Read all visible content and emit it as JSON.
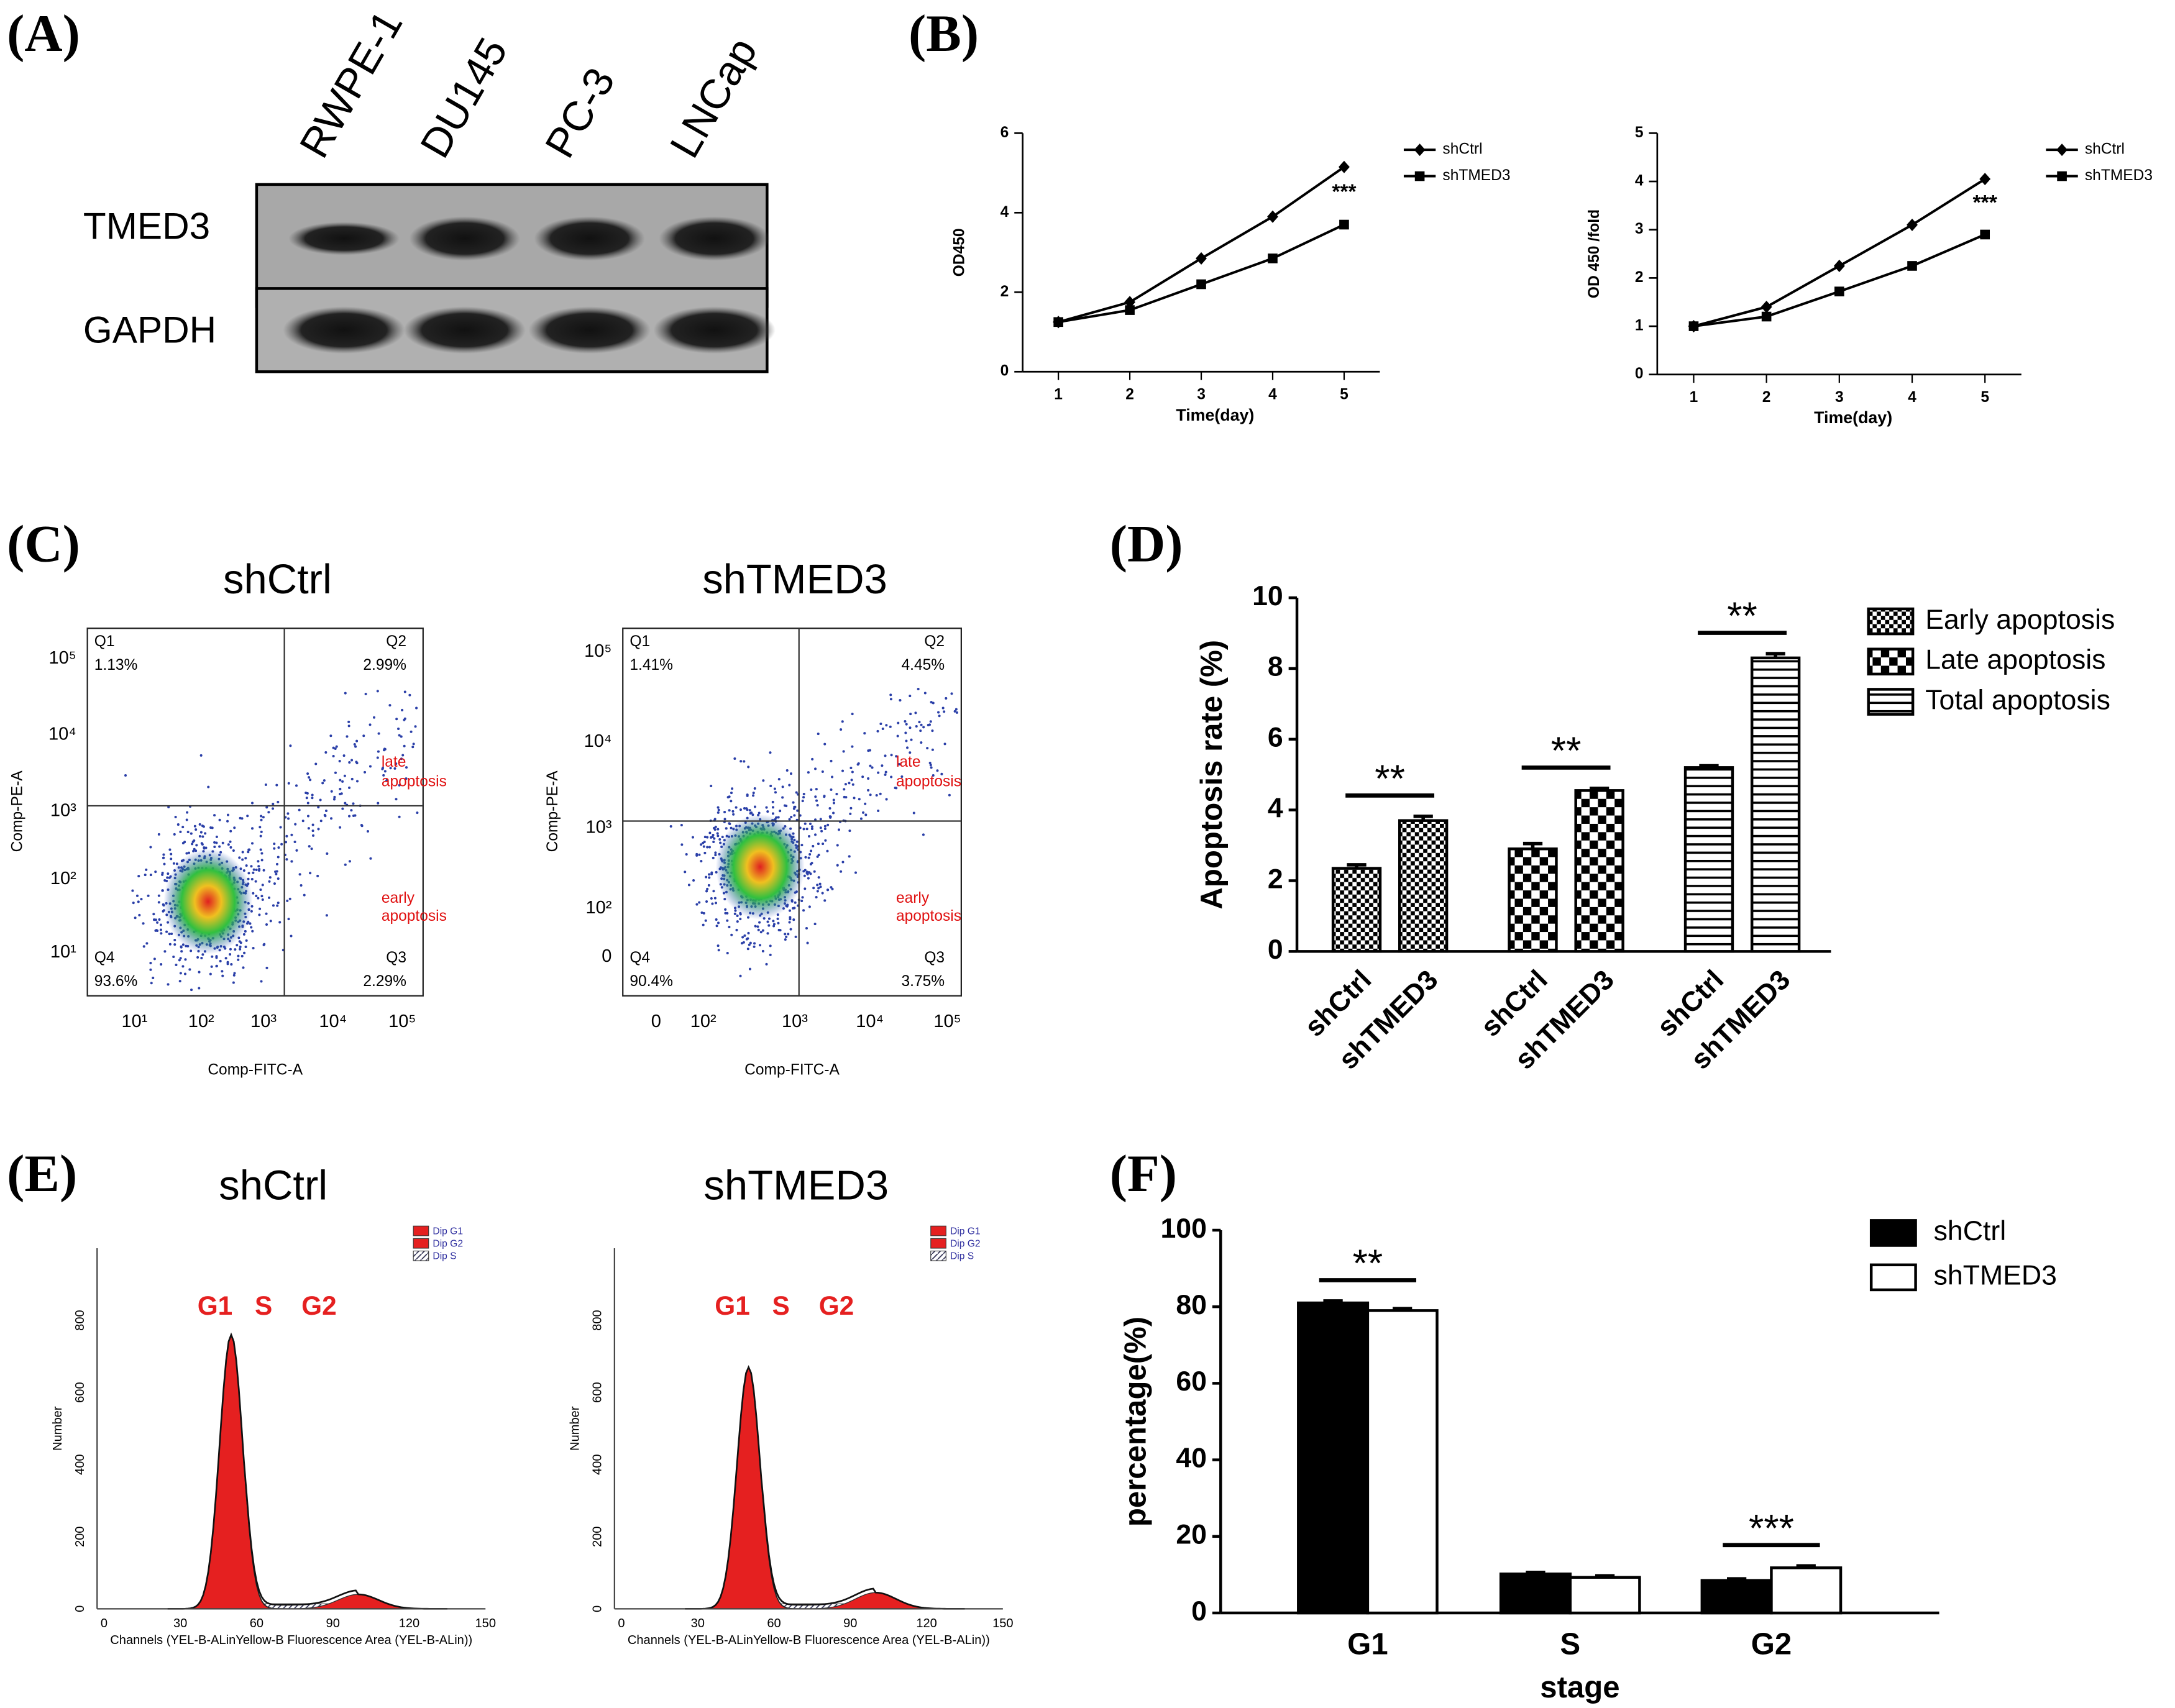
{
  "panel_labels": [
    "(A)",
    "(B)",
    "(C)",
    "(D)",
    "(E)",
    "(F)"
  ],
  "blot": {
    "lanes": [
      "RWPE-1",
      "DU145",
      "PC-3",
      "LNCap"
    ],
    "proteins": [
      "TMED3",
      "GAPDH"
    ]
  },
  "flow": {
    "xlabel": "Comp-FITC-A",
    "ylabel": "Comp-PE-A",
    "plots": [
      {
        "title": "shCtrl",
        "quadrants": [
          {
            "label": "Q1",
            "value": "1.13%"
          },
          {
            "label": "Q2",
            "value": "2.99%"
          },
          {
            "label": "Q4",
            "value": "93.6%"
          },
          {
            "label": "Q3",
            "value": "2.29%"
          }
        ],
        "late": [
          "late",
          "apoptosis"
        ],
        "early": [
          "early",
          "apoptosis"
        ],
        "xticks": [
          "10¹",
          "10²",
          "10³",
          "10⁴",
          "10⁵"
        ],
        "yticks": [
          "10⁵",
          "10⁴",
          "10³",
          "10²",
          "10¹"
        ]
      },
      {
        "title": "shTMED3",
        "quadrants": [
          {
            "label": "Q1",
            "value": "1.41%"
          },
          {
            "label": "Q2",
            "value": "4.45%"
          },
          {
            "label": "Q4",
            "value": "90.4%"
          },
          {
            "label": "Q3",
            "value": "3.75%"
          }
        ],
        "late": [
          "late",
          "apoptosis"
        ],
        "early": [
          "early",
          "apoptosis"
        ],
        "xticks": [
          "0",
          "10²",
          "10³",
          "10⁴",
          "10⁵"
        ],
        "yticks": [
          "10⁵",
          "10⁴",
          "10³",
          "10²",
          "0"
        ]
      }
    ]
  },
  "cell_cycle": {
    "xlabel": "Channels (YEL-B-ALinYellow-B Fluorescence Area (YEL-B-ALin))",
    "ylabel": "Number",
    "legend": [
      "Dip G1",
      "Dip G2",
      "Dip S"
    ],
    "peaks": [
      "G1",
      "S",
      "G2"
    ],
    "xticks": [
      "0",
      "30",
      "60",
      "90",
      "120",
      "150"
    ],
    "yticks": [
      "0",
      "200",
      "400",
      "600",
      "800"
    ],
    "titles": [
      "shCtrl",
      "shTMED3"
    ]
  },
  "chart_data": [
    {
      "type": "line",
      "x": [
        1,
        2,
        3,
        4,
        5
      ],
      "xlim": [
        0.5,
        5.5
      ],
      "xticks": [
        1,
        2,
        3,
        4,
        5
      ],
      "ylim": [
        0,
        6
      ],
      "yticks": [
        0,
        2,
        4,
        6
      ],
      "xlabel": "Time(day)",
      "ylabel": "OD450",
      "annotations": [
        "***"
      ],
      "legend": "upper right",
      "series": [
        {
          "name": "shCtrl",
          "color": "#000000",
          "marker": "diamond",
          "values": [
            1.25,
            1.75,
            2.85,
            3.9,
            5.15
          ]
        },
        {
          "name": "shTMED3",
          "color": "#000000",
          "marker": "square",
          "values": [
            1.25,
            1.55,
            2.2,
            2.85,
            3.7
          ]
        }
      ]
    },
    {
      "type": "line",
      "x": [
        1,
        2,
        3,
        4,
        5
      ],
      "xlim": [
        0.5,
        5.5
      ],
      "xticks": [
        1,
        2,
        3,
        4,
        5
      ],
      "ylim": [
        0,
        5
      ],
      "yticks": [
        0,
        1,
        2,
        3,
        4,
        5
      ],
      "xlabel": "Time(day)",
      "ylabel": "OD 450 /fold",
      "annotations": [
        "***"
      ],
      "legend": "upper right",
      "series": [
        {
          "name": "shCtrl",
          "color": "#000000",
          "marker": "diamond",
          "values": [
            1.0,
            1.4,
            2.25,
            3.1,
            4.05
          ]
        },
        {
          "name": "shTMED3",
          "color": "#000000",
          "marker": "square",
          "values": [
            1.0,
            1.2,
            1.72,
            2.25,
            2.9
          ]
        }
      ]
    },
    {
      "type": "bar",
      "grouping": "series",
      "categories": [
        "shCtrl",
        "shTMED3"
      ],
      "ylim": [
        0,
        10
      ],
      "yticks": [
        0,
        2,
        4,
        6,
        8,
        10
      ],
      "ylabel": "Apoptosis rate (%)",
      "annotations": [
        "**",
        "**",
        "**"
      ],
      "legend": "upper right",
      "series": [
        {
          "name": "Early apoptosis",
          "pattern": "small-checker",
          "values": [
            2.35,
            3.7
          ],
          "errors": [
            0.1,
            0.12
          ]
        },
        {
          "name": "Late apoptosis",
          "pattern": "large-checker",
          "values": [
            2.9,
            4.55
          ],
          "errors": [
            0.15,
            0.06
          ]
        },
        {
          "name": "Total apoptosis",
          "pattern": "horizontal-stripes",
          "values": [
            5.2,
            8.3
          ],
          "errors": [
            0.05,
            0.12
          ]
        }
      ]
    },
    {
      "type": "bar",
      "grouping": "category",
      "categories": [
        "G1",
        "S",
        "G2"
      ],
      "ylim": [
        0,
        100
      ],
      "yticks": [
        0,
        20,
        40,
        60,
        80,
        100
      ],
      "xlabel": "stage",
      "ylabel": "percentage(%)",
      "annotations": [
        "**",
        "***"
      ],
      "legend": "upper right",
      "series": [
        {
          "name": "shCtrl",
          "color": "#000000",
          "values": [
            81,
            10.2,
            8.5
          ],
          "errors": [
            0.5,
            0.4,
            0.4
          ]
        },
        {
          "name": "shTMED3",
          "color": "#ffffff",
          "values": [
            79,
            9.3,
            11.8
          ],
          "errors": [
            0.5,
            0.4,
            0.5
          ]
        }
      ]
    }
  ]
}
